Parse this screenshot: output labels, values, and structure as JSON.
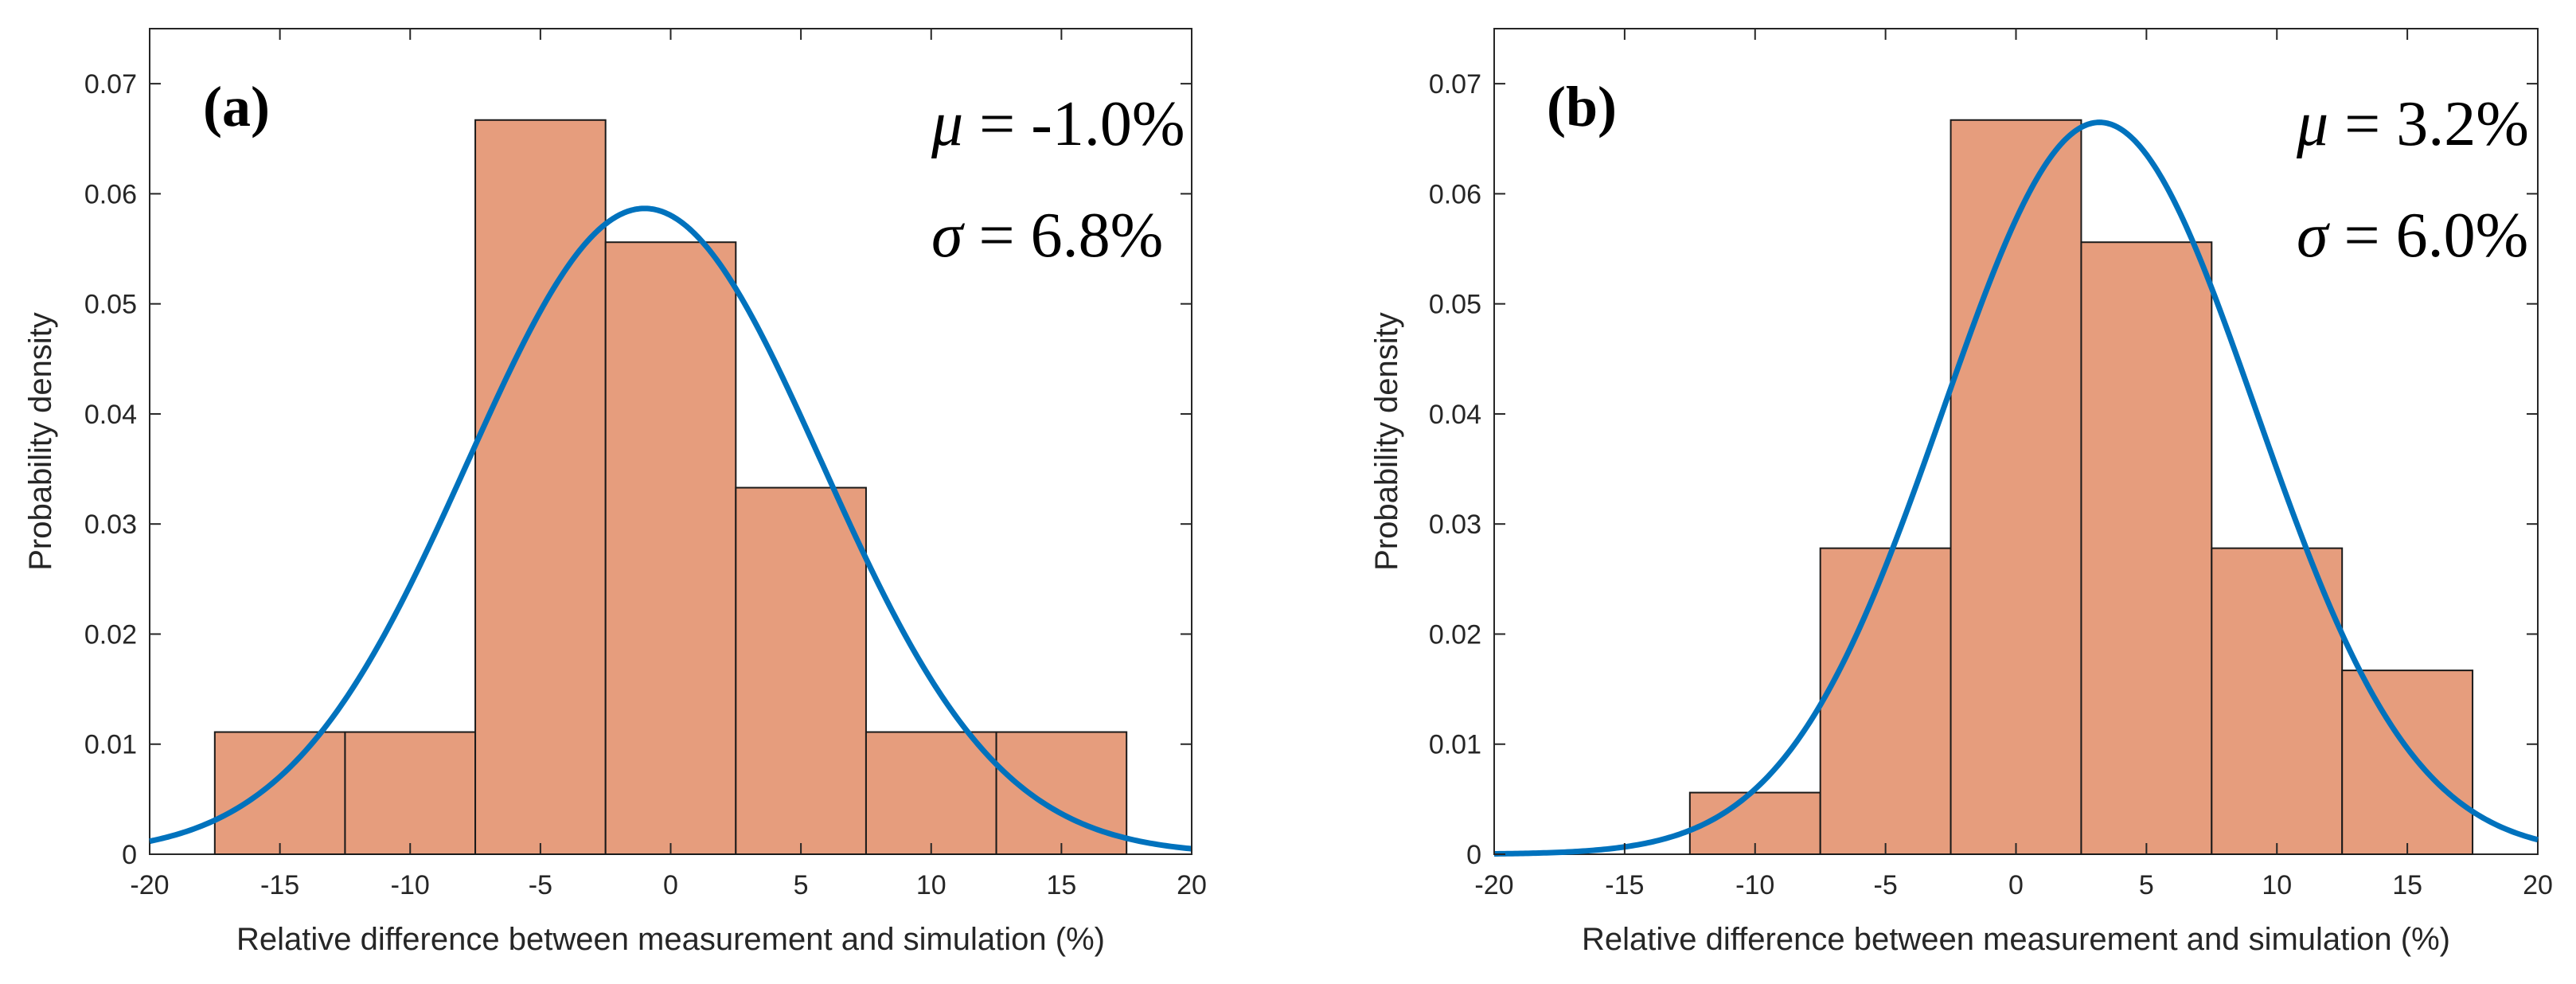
{
  "chart_data": [
    {
      "type": "bar",
      "panel_label": "(a)",
      "xlabel": "Relative difference between measurement and simulation (%)",
      "ylabel": "Probability density",
      "xlim": [
        -20,
        20
      ],
      "ylim": [
        0,
        0.075
      ],
      "xticks": [
        "-20",
        "-15",
        "-10",
        "-5",
        "0",
        "5",
        "10",
        "15",
        "20"
      ],
      "yticks": [
        "0",
        "0.01",
        "0.02",
        "0.03",
        "0.04",
        "0.05",
        "0.06",
        "0.07"
      ],
      "bin_edges": [
        -17.5,
        -12.5,
        -7.5,
        -2.5,
        2.5,
        7.5,
        12.5,
        17.5
      ],
      "values": [
        0.0111,
        0.0111,
        0.0667,
        0.0556,
        0.0333,
        0.0111,
        0.0111
      ],
      "fit": {
        "mu": -1.0,
        "sigma": 6.8,
        "type": "normal"
      },
      "mu_label": "μ = -1.0%",
      "sigma_label": "σ = 6.8%",
      "mu_symbol": "μ",
      "mu_text": " = -1.0%",
      "sigma_symbol": "σ",
      "sigma_text": " = 6.8%",
      "bar_color": "#E59876",
      "curve_color": "#0072BD",
      "grid": false
    },
    {
      "type": "bar",
      "panel_label": "(b)",
      "xlabel": "Relative difference between measurement and simulation (%)",
      "ylabel": "Probability density",
      "xlim": [
        -20,
        20
      ],
      "ylim": [
        0,
        0.075
      ],
      "xticks": [
        "-20",
        "-15",
        "-10",
        "-5",
        "0",
        "5",
        "10",
        "15",
        "20"
      ],
      "yticks": [
        "0",
        "0.01",
        "0.02",
        "0.03",
        "0.04",
        "0.05",
        "0.06",
        "0.07"
      ],
      "bin_edges": [
        -17.5,
        -12.5,
        -7.5,
        -2.5,
        2.5,
        7.5,
        12.5,
        17.5
      ],
      "values": [
        0.0,
        0.0056,
        0.0278,
        0.0667,
        0.0556,
        0.0278,
        0.0167
      ],
      "fit": {
        "mu": 3.2,
        "sigma": 6.0,
        "type": "normal"
      },
      "mu_label": "μ = 3.2%",
      "sigma_label": "σ = 6.0%",
      "mu_symbol": "μ",
      "mu_text": " = 3.2%",
      "sigma_symbol": "σ",
      "sigma_text": " = 6.0%",
      "bar_color": "#E59876",
      "curve_color": "#0072BD",
      "grid": false
    }
  ]
}
